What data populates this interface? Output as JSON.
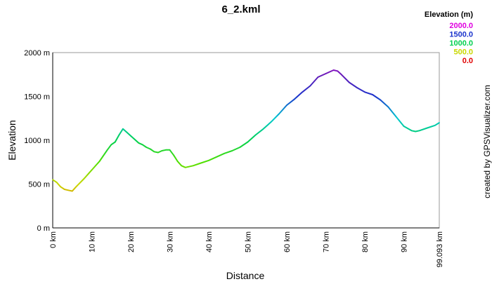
{
  "chart_data": {
    "type": "line",
    "title": "6_2.kml",
    "xlabel": "Distance",
    "ylabel": "Elevation",
    "xlim": [
      0,
      99.093
    ],
    "ylim": [
      0,
      2000
    ],
    "grid": true,
    "x_ticks": [
      {
        "value": 0,
        "label": "0 km"
      },
      {
        "value": 10,
        "label": "10 km"
      },
      {
        "value": 20,
        "label": "20 km"
      },
      {
        "value": 30,
        "label": "30 km"
      },
      {
        "value": 40,
        "label": "40 km"
      },
      {
        "value": 50,
        "label": "50 km"
      },
      {
        "value": 60,
        "label": "60 km"
      },
      {
        "value": 70,
        "label": "70 km"
      },
      {
        "value": 80,
        "label": "80 km"
      },
      {
        "value": 90,
        "label": "90 km"
      },
      {
        "value": 99.093,
        "label": "99.093 km"
      }
    ],
    "y_ticks": [
      {
        "value": 0,
        "label": "0 m"
      },
      {
        "value": 500,
        "label": "500 m"
      },
      {
        "value": 1000,
        "label": "1000 m"
      },
      {
        "value": 1500,
        "label": "1500 m"
      },
      {
        "value": 2000,
        "label": "2000 m"
      }
    ],
    "legend": {
      "title": "Elevation (m)",
      "placement": "top-right",
      "entries": [
        {
          "label": "2000.0",
          "color": "#e000e0"
        },
        {
          "label": "1500.0",
          "color": "#1a33cc"
        },
        {
          "label": "1000.0",
          "color": "#00d050"
        },
        {
          "label": "500.0",
          "color": "#c8d800"
        },
        {
          "label": "0.0",
          "color": "#e00000"
        }
      ]
    },
    "series": [
      {
        "x": [
          0,
          1,
          2,
          3,
          4,
          5,
          6,
          8,
          10,
          12,
          14,
          15,
          16,
          17,
          18,
          19,
          20,
          21,
          22,
          23,
          24,
          25,
          26,
          27,
          28,
          29,
          30,
          31,
          32,
          33,
          34,
          36,
          38,
          40,
          42,
          44,
          46,
          48,
          50,
          52,
          54,
          56,
          58,
          60,
          62,
          64,
          66,
          68,
          70,
          72,
          73,
          74,
          76,
          78,
          80,
          82,
          84,
          86,
          88,
          90,
          92,
          93,
          94,
          96,
          98,
          99.093
        ],
        "y": [
          550,
          520,
          470,
          440,
          430,
          420,
          470,
          560,
          660,
          760,
          890,
          950,
          980,
          1060,
          1130,
          1090,
          1050,
          1010,
          970,
          950,
          920,
          900,
          870,
          860,
          880,
          890,
          890,
          830,
          760,
          710,
          690,
          710,
          740,
          770,
          810,
          850,
          880,
          920,
          980,
          1060,
          1130,
          1210,
          1300,
          1400,
          1470,
          1550,
          1620,
          1720,
          1760,
          1800,
          1790,
          1750,
          1660,
          1600,
          1550,
          1520,
          1460,
          1380,
          1270,
          1160,
          1110,
          1100,
          1110,
          1140,
          1170,
          1200
        ]
      }
    ]
  },
  "credit": "created by GPSVisualizer.com"
}
